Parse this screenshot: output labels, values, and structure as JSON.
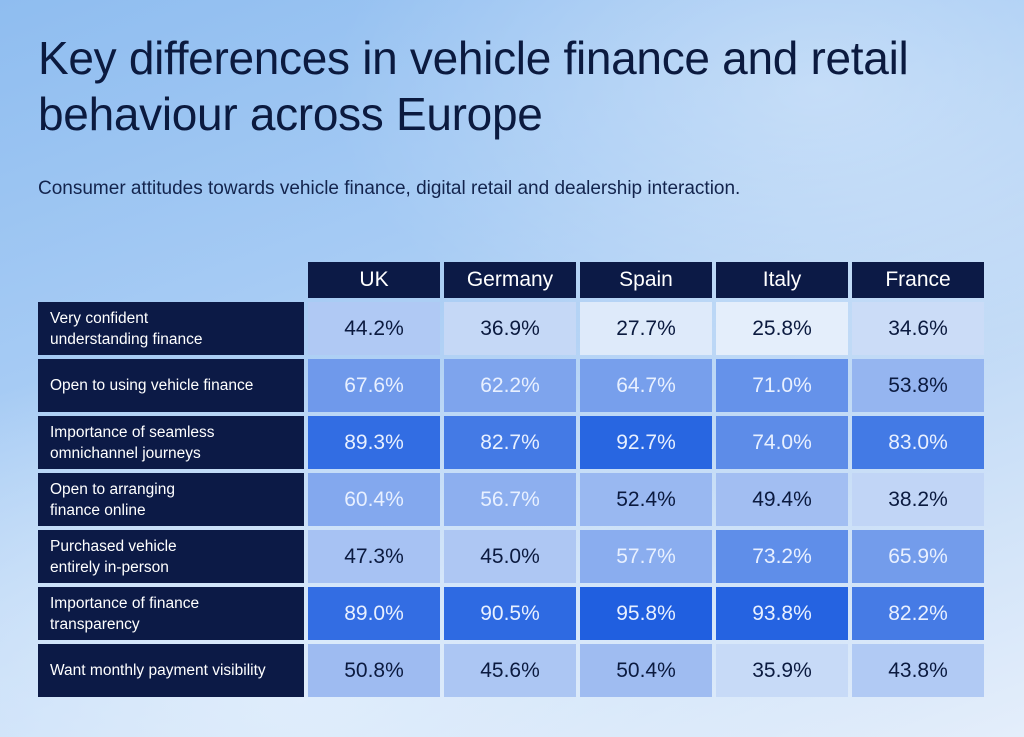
{
  "title": "Key differences in vehicle finance and retail behaviour across Europe",
  "subtitle": "Consumer attitudes towards vehicle finance, digital retail and dealership interaction.",
  "chart_data": {
    "type": "heatmap",
    "title": "Key differences in vehicle finance and retail behaviour across Europe",
    "subtitle": "Consumer attitudes towards vehicle finance, digital retail and dealership interaction.",
    "columns": [
      "UK",
      "Germany",
      "Spain",
      "Italy",
      "France"
    ],
    "rows": [
      {
        "label": "Very confident understanding finance",
        "values": [
          44.2,
          36.9,
          27.7,
          25.8,
          34.6
        ],
        "display": [
          "44.2%",
          "36.9%",
          "27.7%",
          "25.8%",
          "34.6%"
        ]
      },
      {
        "label": "Open to using vehicle finance",
        "values": [
          67.6,
          62.2,
          64.7,
          71.0,
          53.8
        ],
        "display": [
          "67.6%",
          "62.2%",
          "64.7%",
          "71.0%",
          "53.8%"
        ]
      },
      {
        "label": "Importance of seamless omnichannel journeys",
        "values": [
          89.3,
          82.7,
          92.7,
          74.0,
          83.0
        ],
        "display": [
          "89.3%",
          "82.7%",
          "92.7%",
          "74.0%",
          "83.0%"
        ]
      },
      {
        "label": "Open to arranging finance online",
        "values": [
          60.4,
          56.7,
          52.4,
          49.4,
          38.2
        ],
        "display": [
          "60.4%",
          "56.7%",
          "52.4%",
          "49.4%",
          "38.2%"
        ]
      },
      {
        "label": "Purchased vehicle entirely in-person",
        "values": [
          47.3,
          45.0,
          57.7,
          73.2,
          65.9
        ],
        "display": [
          "47.3%",
          "45.0%",
          "57.7%",
          "73.2%",
          "65.9%"
        ]
      },
      {
        "label": "Importance of finance transparency",
        "values": [
          89.0,
          90.5,
          95.8,
          93.8,
          82.2
        ],
        "display": [
          "89.0%",
          "90.5%",
          "95.8%",
          "93.8%",
          "82.2%"
        ]
      },
      {
        "label": "Want monthly payment visibility",
        "values": [
          50.8,
          45.6,
          50.4,
          35.9,
          43.8
        ],
        "display": [
          "50.8%",
          "45.6%",
          "50.4%",
          "35.9%",
          "43.8%"
        ]
      }
    ],
    "color_scale": {
      "low": "#e6f0fb",
      "high": "#1f5fe0"
    }
  }
}
